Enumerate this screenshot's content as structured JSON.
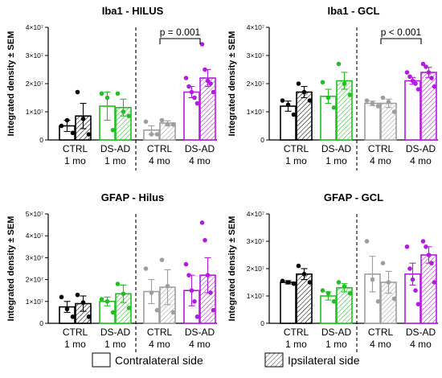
{
  "colors": {
    "CTRL": "#000000",
    "DS-AD": "#21c021",
    "CTRL_4mo": "#9e9e9e",
    "DS-AD_4mo": "#b41be0"
  },
  "legend": {
    "contralateral": "Contralateral side",
    "ipsilateral": "Ipsilateral side"
  },
  "chart_data": [
    {
      "type": "bar",
      "title": "Iba1 - HILUS",
      "ylabel": "Integrated density ± SEM",
      "ylim": [
        0,
        40000000
      ],
      "yticks": [
        "0",
        "1×10⁷",
        "2×10⁷",
        "3×10⁷",
        "4×10⁷"
      ],
      "groups": [
        {
          "name": "CTRL",
          "sub": "1 mo",
          "color_key": "CTRL",
          "contra": {
            "mean": 5000000,
            "sem": 2000000,
            "points": [
              5000000,
              7000000,
              2500000
            ]
          },
          "ipsi": {
            "mean": 8500000,
            "sem": 4500000,
            "points": [
              17000000,
              7500000,
              2000000
            ]
          }
        },
        {
          "name": "DS-AD",
          "sub": "1 mo",
          "color_key": "DS-AD",
          "contra": {
            "mean": 12000000,
            "sem": 5000000,
            "points": [
              16500000,
              15000000,
              3500000
            ]
          },
          "ipsi": {
            "mean": 11500000,
            "sem": 3000000,
            "points": [
              16500000,
              10000000,
              8500000
            ]
          }
        },
        {
          "name": "CTRL",
          "sub": "4 mo",
          "color_key": "CTRL_4mo",
          "contra": {
            "mean": 3500000,
            "sem": 1500000,
            "points": [
              6500000,
              2000000,
              2000000
            ]
          },
          "ipsi": {
            "mean": 6000000,
            "sem": 800000,
            "points": [
              7000000,
              5500000,
              5500000
            ]
          }
        },
        {
          "name": "DS-AD",
          "sub": "4 mo",
          "color_key": "DS-AD_4mo",
          "contra": {
            "mean": 17000000,
            "sem": 2000000,
            "points": [
              22000000,
              19000000,
              17000000,
              15000000,
              13000000
            ]
          },
          "ipsi": {
            "mean": 22000000,
            "sem": 3000000,
            "points": [
              34000000,
              25000000,
              21000000,
              20000000,
              17000000
            ]
          }
        }
      ],
      "annotation": {
        "text": "p = 0.001",
        "from_group": 2,
        "to_group": 3
      }
    },
    {
      "type": "bar",
      "title": "Iba1 - GCL",
      "ylabel": "Integrated density ± SEM",
      "ylim": [
        0,
        40000000
      ],
      "yticks": [
        "0",
        "1×10⁷",
        "2×10⁷",
        "3×10⁷",
        "4×10⁷"
      ],
      "groups": [
        {
          "name": "CTRL",
          "sub": "1 mo",
          "color_key": "CTRL",
          "contra": {
            "mean": 12000000,
            "sem": 1800000,
            "points": [
              14000000,
              12500000,
              9000000
            ]
          },
          "ipsi": {
            "mean": 17000000,
            "sem": 2000000,
            "points": [
              20000000,
              17000000,
              14000000
            ]
          }
        },
        {
          "name": "DS-AD",
          "sub": "1 mo",
          "color_key": "DS-AD",
          "contra": {
            "mean": 15500000,
            "sem": 2500000,
            "points": [
              20500000,
              15000000,
              11500000
            ]
          },
          "ipsi": {
            "mean": 21000000,
            "sem": 3000000,
            "points": [
              27000000,
              20000000,
              16000000
            ]
          }
        },
        {
          "name": "CTRL",
          "sub": "4 mo",
          "color_key": "CTRL_4mo",
          "contra": {
            "mean": 13000000,
            "sem": 800000,
            "points": [
              14000000,
              13000000,
              12000000
            ]
          },
          "ipsi": {
            "mean": 13000000,
            "sem": 1500000,
            "points": [
              15000000,
              13500000,
              10000000
            ]
          }
        },
        {
          "name": "DS-AD",
          "sub": "4 mo",
          "color_key": "DS-AD_4mo",
          "contra": {
            "mean": 21000000,
            "sem": 1200000,
            "points": [
              24000000,
              22500000,
              21000000,
              20000000,
              18000000
            ]
          },
          "ipsi": {
            "mean": 24000000,
            "sem": 1800000,
            "points": [
              27000000,
              26000000,
              24000000,
              22000000,
              19000000
            ]
          }
        }
      ],
      "annotation": {
        "text": "p < 0.001",
        "from_group": 2,
        "to_group": 3
      }
    },
    {
      "type": "bar",
      "title": "GFAP - Hilus",
      "ylabel": "Integrated density ± SEM",
      "ylim": [
        0,
        50000000
      ],
      "yticks": [
        "0",
        "1×10⁷",
        "2×10⁷",
        "3×10⁷",
        "4×10⁷",
        "5×10⁷"
      ],
      "groups": [
        {
          "name": "CTRL",
          "sub": "1 mo",
          "color_key": "CTRL",
          "contra": {
            "mean": 7500000,
            "sem": 2500000,
            "points": [
              12000000,
              6500000,
              3000000
            ]
          },
          "ipsi": {
            "mean": 9000000,
            "sem": 3500000,
            "points": [
              13000000,
              9500000,
              3000000
            ]
          }
        },
        {
          "name": "DS-AD",
          "sub": "1 mo",
          "color_key": "DS-AD",
          "contra": {
            "mean": 10000000,
            "sem": 2000000,
            "points": [
              11000000,
              10000000,
              5000000
            ]
          },
          "ipsi": {
            "mean": 13500000,
            "sem": 4000000,
            "points": [
              18000000,
              13500000,
              7000000
            ]
          }
        },
        {
          "name": "CTRL",
          "sub": "4 mo",
          "color_key": "CTRL_4mo",
          "contra": {
            "mean": 14500000,
            "sem": 5500000,
            "points": [
              25000000,
              14000000,
              6000000
            ]
          },
          "ipsi": {
            "mean": 16500000,
            "sem": 8000000,
            "points": [
              29000000,
              17000000,
              5000000
            ]
          }
        },
        {
          "name": "DS-AD",
          "sub": "4 mo",
          "color_key": "DS-AD_4mo",
          "contra": {
            "mean": 15000000,
            "sem": 7000000,
            "points": [
              27000000,
              22000000,
              15000000,
              10000000,
              3000000
            ]
          },
          "ipsi": {
            "mean": 22000000,
            "sem": 8000000,
            "points": [
              46000000,
              38000000,
              22000000,
              14000000,
              6000000
            ]
          }
        }
      ]
    },
    {
      "type": "bar",
      "title": "GFAP - GCL",
      "ylabel": "Integrated density ± SEM",
      "ylim": [
        0,
        40000000
      ],
      "yticks": [
        "0",
        "1×10⁷",
        "2×10⁷",
        "3×10⁷",
        "4×10⁷"
      ],
      "groups": [
        {
          "name": "CTRL",
          "sub": "1 mo",
          "color_key": "CTRL",
          "contra": {
            "mean": 15000000,
            "sem": 600000,
            "points": [
              15500000,
              15000000,
              14500000
            ]
          },
          "ipsi": {
            "mean": 18000000,
            "sem": 2000000,
            "points": [
              21000000,
              18000000,
              15000000
            ]
          }
        },
        {
          "name": "DS-AD",
          "sub": "1 mo",
          "color_key": "DS-AD",
          "contra": {
            "mean": 10000000,
            "sem": 1500000,
            "points": [
              12000000,
              11000000,
              8000000
            ]
          },
          "ipsi": {
            "mean": 13000000,
            "sem": 1500000,
            "points": [
              15000000,
              13500000,
              11000000
            ]
          }
        },
        {
          "name": "CTRL",
          "sub": "4 mo",
          "color_key": "CTRL_4mo",
          "contra": {
            "mean": 18000000,
            "sem": 6500000,
            "points": [
              30000000,
              16000000,
              8000000
            ]
          },
          "ipsi": {
            "mean": 15000000,
            "sem": 4000000,
            "points": [
              22000000,
              15000000,
              9000000
            ]
          }
        },
        {
          "name": "DS-AD",
          "sub": "4 mo",
          "color_key": "DS-AD_4mo",
          "contra": {
            "mean": 18000000,
            "sem": 4000000,
            "points": [
              28000000,
              20000000,
              16000000,
              12000000,
              7000000
            ]
          },
          "ipsi": {
            "mean": 25000000,
            "sem": 3000000,
            "points": [
              30000000,
              28000000,
              25000000,
              22000000,
              15000000
            ]
          }
        }
      ]
    }
  ]
}
